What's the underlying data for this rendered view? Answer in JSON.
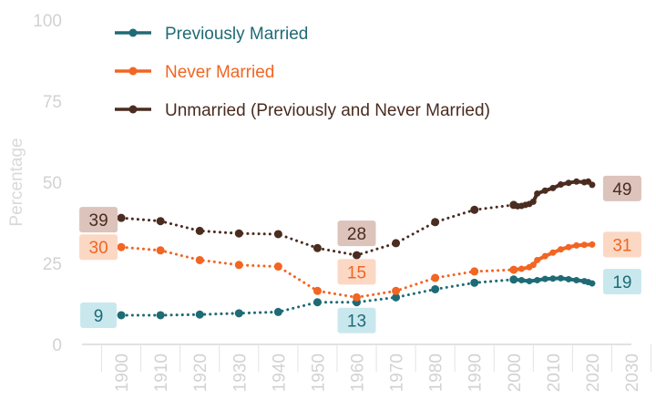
{
  "chart_data": {
    "type": "line",
    "ylabel": "Percentage",
    "xlabel": "",
    "title": "",
    "ylim": [
      0,
      100
    ],
    "xlim": [
      1890,
      2030
    ],
    "y_ticks": [
      "0",
      "25",
      "50",
      "75",
      "100"
    ],
    "x_ticks": [
      "1900",
      "1910",
      "1920",
      "1930",
      "1940",
      "1950",
      "1960",
      "1970",
      "1980",
      "1990",
      "2000",
      "2010",
      "2020",
      "2030"
    ],
    "grid": false,
    "legend_position": "top-left",
    "series": [
      {
        "name": "Previously Married",
        "color": "#1f6b75",
        "label_color": "#1f6b75",
        "label_bg": "#c9e8ee",
        "dotted": [
          [
            1900,
            9
          ],
          [
            1910,
            9
          ],
          [
            1920,
            9.2
          ],
          [
            1930,
            9.6
          ],
          [
            1940,
            10
          ],
          [
            1950,
            13
          ],
          [
            1960,
            13
          ],
          [
            1970,
            14.5
          ],
          [
            1980,
            17
          ],
          [
            1990,
            19
          ],
          [
            2000,
            20
          ]
        ],
        "solid": [
          [
            2000,
            20
          ],
          [
            2002,
            19.8
          ],
          [
            2004,
            19.5
          ],
          [
            2006,
            19.8
          ],
          [
            2008,
            20.2
          ],
          [
            2010,
            20.3
          ],
          [
            2012,
            20.4
          ],
          [
            2014,
            20.1
          ],
          [
            2016,
            19.8
          ],
          [
            2018,
            19.5
          ],
          [
            2019,
            19.2
          ],
          [
            2020,
            18.8
          ]
        ],
        "labels": [
          {
            "year": 1900,
            "value": 9,
            "text": "9"
          },
          {
            "year": 1960,
            "value": 13,
            "text": "13"
          },
          {
            "year": 2020,
            "value": 18.8,
            "text": "19"
          }
        ]
      },
      {
        "name": "Never Married",
        "color": "#f26522",
        "label_color": "#f26522",
        "label_bg": "#fbd8c4",
        "dotted": [
          [
            1900,
            30
          ],
          [
            1910,
            29
          ],
          [
            1920,
            26
          ],
          [
            1930,
            24.5
          ],
          [
            1940,
            24
          ],
          [
            1950,
            16.5
          ],
          [
            1960,
            14.5
          ],
          [
            1970,
            16.5
          ],
          [
            1980,
            20.5
          ],
          [
            1990,
            22.5
          ],
          [
            2000,
            23
          ]
        ],
        "solid": [
          [
            2000,
            23
          ],
          [
            2002,
            23.3
          ],
          [
            2004,
            23.8
          ],
          [
            2005,
            24.5
          ],
          [
            2006,
            26
          ],
          [
            2008,
            27.2
          ],
          [
            2010,
            28.3
          ],
          [
            2012,
            29.3
          ],
          [
            2014,
            30
          ],
          [
            2016,
            30.5
          ],
          [
            2018,
            30.7
          ],
          [
            2020,
            30.8
          ]
        ],
        "labels": [
          {
            "year": 1900,
            "value": 30,
            "text": "30"
          },
          {
            "year": 1960,
            "value": 14.5,
            "text": "15"
          },
          {
            "year": 2020,
            "value": 30.8,
            "text": "31"
          }
        ]
      },
      {
        "name": "Unmarried (Previously and Never Married)",
        "color": "#4a2c20",
        "label_color": "#4a2c20",
        "label_bg": "#dcc3bb",
        "dotted": [
          [
            1900,
            39
          ],
          [
            1910,
            38
          ],
          [
            1920,
            35
          ],
          [
            1930,
            34.2
          ],
          [
            1940,
            34
          ],
          [
            1950,
            29.7
          ],
          [
            1960,
            27.5
          ],
          [
            1970,
            31.2
          ],
          [
            1980,
            37.7
          ],
          [
            1990,
            41.5
          ],
          [
            2000,
            43
          ]
        ],
        "solid": [
          [
            2000,
            43
          ],
          [
            2001,
            42.6
          ],
          [
            2002,
            42.7
          ],
          [
            2003,
            43
          ],
          [
            2004,
            43.3
          ],
          [
            2005,
            44
          ],
          [
            2006,
            46.5
          ],
          [
            2008,
            47.4
          ],
          [
            2010,
            48.2
          ],
          [
            2012,
            49.3
          ],
          [
            2014,
            49.8
          ],
          [
            2016,
            50.2
          ],
          [
            2018,
            50
          ],
          [
            2019,
            50.2
          ],
          [
            2020,
            49.2
          ]
        ],
        "labels": [
          {
            "year": 1900,
            "value": 39,
            "text": "39"
          },
          {
            "year": 1960,
            "value": 27.5,
            "text": "28"
          },
          {
            "year": 2020,
            "value": 49.2,
            "text": "49"
          }
        ]
      }
    ]
  }
}
